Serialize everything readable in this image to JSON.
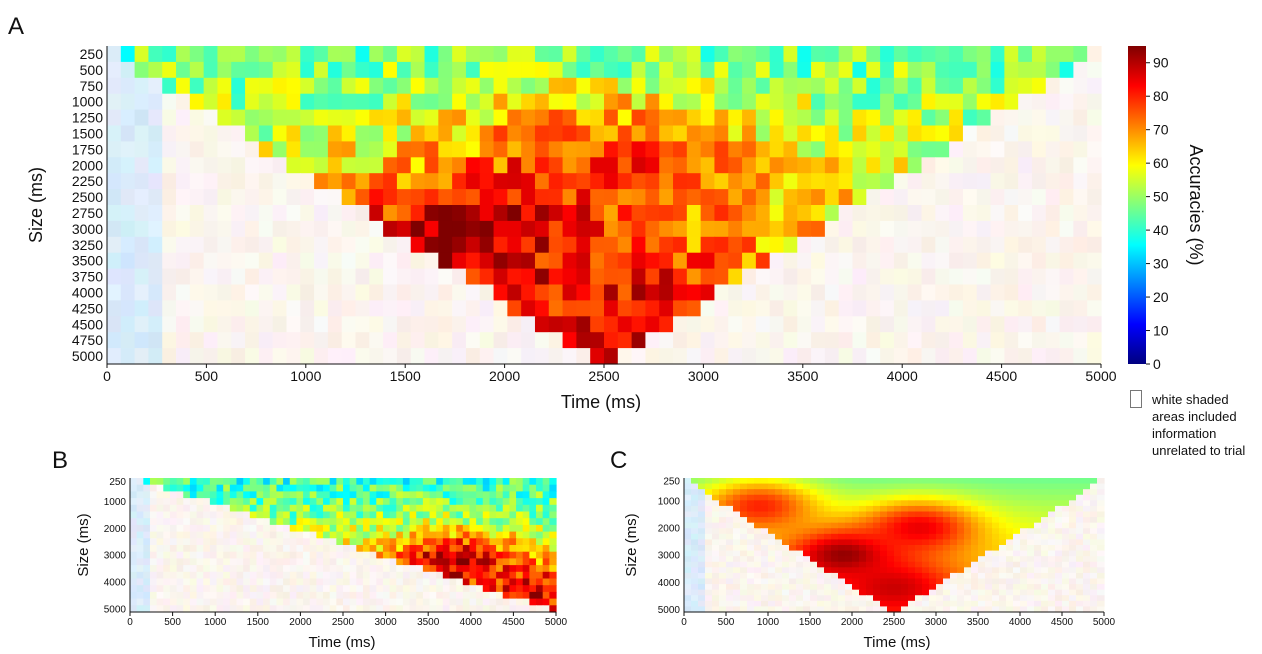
{
  "colors": {
    "colormap": [
      "#00007f",
      "#0000ff",
      "#007fff",
      "#00ffff",
      "#7fff7f",
      "#ffff00",
      "#ff7f00",
      "#ff0000",
      "#7f0000"
    ],
    "outside_tint": "light pastel",
    "axis": "#111111"
  },
  "colorbar": {
    "label": "Accuracies (%)",
    "min": 0,
    "max": 95,
    "ticks": [
      "0",
      "10",
      "20",
      "30",
      "40",
      "50",
      "60",
      "70",
      "80",
      "90"
    ]
  },
  "legend_note": "white shaded areas included information unrelated to trial",
  "chart_data": [
    {
      "panel": "A",
      "type": "heatmap",
      "xlabel": "Time (ms)",
      "ylabel": "Size (ms)",
      "xlim": [
        0,
        5000
      ],
      "x_ticks": [
        "0",
        "500",
        "1000",
        "1500",
        "2000",
        "2500",
        "3000",
        "3500",
        "4000",
        "4500",
        "5000"
      ],
      "y_ticks": [
        "250",
        "500",
        "750",
        "1000",
        "1250",
        "1500",
        "1750",
        "2000",
        "2250",
        "2500",
        "2750",
        "3000",
        "3250",
        "3500",
        "3750",
        "4000",
        "4250",
        "4500",
        "4750",
        "5000"
      ],
      "window_alignment": "centered",
      "valid_region": "inverted triangle: window of given size centered on time point fits within trial",
      "hotspots": [
        {
          "time_ms": 1900,
          "size_ms": 3000,
          "accuracy": 92
        },
        {
          "time_ms": 2500,
          "size_ms": 4250,
          "accuracy": 85
        },
        {
          "time_ms": 2500,
          "size_ms": 2000,
          "accuracy": 80
        }
      ],
      "baseline_small_window_accuracy": 45
    },
    {
      "panel": "B",
      "type": "heatmap",
      "xlabel": "Time (ms)",
      "ylabel": "Size (ms)",
      "xlim": [
        0,
        5000
      ],
      "x_ticks": [
        "0",
        "500",
        "1000",
        "1500",
        "2000",
        "2500",
        "3000",
        "3500",
        "4000",
        "4500",
        "5000"
      ],
      "y_ticks": [
        "250",
        "1000",
        "2000",
        "3000",
        "4000",
        "5000"
      ],
      "window_alignment": "trailing",
      "valid_region": "lower-right triangle: window ends at time point",
      "hotspots": [
        {
          "time_ms": 3800,
          "size_ms": 3200,
          "accuracy": 90
        },
        {
          "time_ms": 4700,
          "size_ms": 4300,
          "accuracy": 85
        }
      ],
      "baseline_small_window_accuracy": 40
    },
    {
      "panel": "C",
      "type": "heatmap",
      "xlabel": "Time (ms)",
      "ylabel": "Size (ms)",
      "xlim": [
        0,
        5000
      ],
      "x_ticks": [
        "0",
        "500",
        "1000",
        "1500",
        "2000",
        "2500",
        "3000",
        "3500",
        "4000",
        "4500",
        "5000"
      ],
      "y_ticks": [
        "250",
        "1000",
        "2000",
        "3000",
        "4000",
        "5000"
      ],
      "window_alignment": "centered (smoothed)",
      "valid_region": "inverted triangle: window of given size centered on time point fits within trial",
      "hotspots": [
        {
          "time_ms": 1900,
          "size_ms": 3000,
          "accuracy": 93
        },
        {
          "time_ms": 2500,
          "size_ms": 4200,
          "accuracy": 88
        },
        {
          "time_ms": 2800,
          "size_ms": 2000,
          "accuracy": 85
        },
        {
          "time_ms": 900,
          "size_ms": 1200,
          "accuracy": 80
        }
      ],
      "baseline_small_window_accuracy": 45
    }
  ],
  "panels": {
    "A": {
      "letter": "A"
    },
    "B": {
      "letter": "B"
    },
    "C": {
      "letter": "C"
    }
  }
}
